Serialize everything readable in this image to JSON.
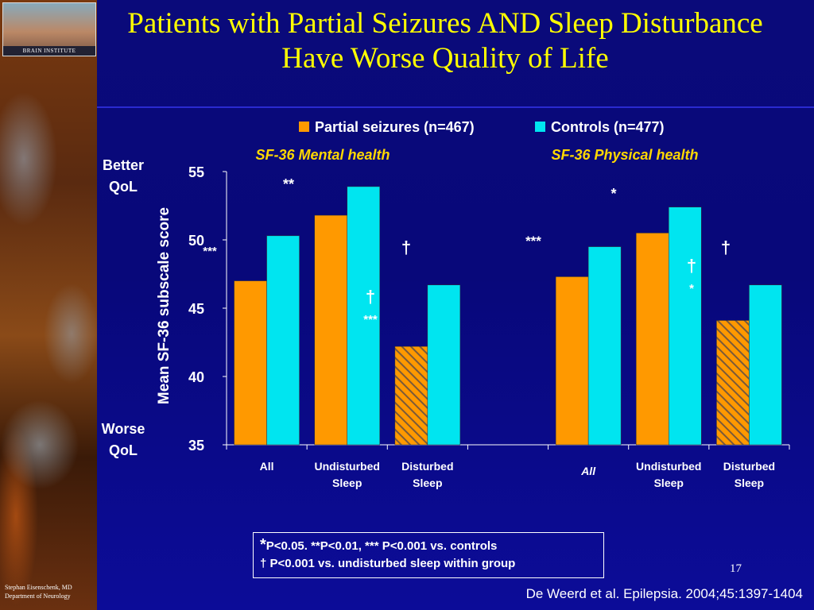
{
  "slide": {
    "title": "Patients with Partial Seizures AND Sleep Disturbance Have Worse Quality of Life",
    "logo_caption": "BRAIN INSTITUTE",
    "credit_line1": "Stephan Eisenschenk, MD",
    "credit_line2": "Department of Neurology",
    "page_number": "17",
    "citation": "De Weerd et al. Epilepsia. 2004;45:1397-1404",
    "footnote_line1_star": "*",
    "footnote_line1": "P<0.05. **P<0.01, *** P<0.001 vs. controls",
    "footnote_line2": "† P<0.001 vs. undisturbed sleep within group"
  },
  "colors": {
    "partial": "#ff9900",
    "controls": "#00e5f0",
    "hatch": "#7a5a3a",
    "background": "#0a0a7a",
    "title": "#ffff00",
    "subtitle": "#ffd800",
    "text": "#ffffff"
  },
  "chart_data": {
    "type": "bar",
    "ylabel": "Mean SF-36 subscale score",
    "ylim": [
      35,
      55
    ],
    "yticks": [
      "35",
      "40",
      "45",
      "50",
      "55"
    ],
    "y_top_label": "Better\nQoL",
    "y_bottom_label": "Worse\nQoL",
    "legend": [
      "Partial seizures (n=467)",
      "Controls (n=477)"
    ],
    "legend_position": "top",
    "panels": [
      {
        "subtitle": "SF-36 Mental health",
        "groups": [
          {
            "label": "All",
            "partial": 47.0,
            "controls": 50.3,
            "partial_hatched": false
          },
          {
            "label": "Undisturbed\nSleep",
            "partial": 51.8,
            "controls": 53.9,
            "partial_hatched": false
          },
          {
            "label": "Disturbed\nSleep",
            "partial": 42.2,
            "controls": 46.7,
            "partial_hatched": true
          }
        ]
      },
      {
        "subtitle": "SF-36 Physical health",
        "groups": [
          {
            "label": "All",
            "partial": 47.3,
            "controls": 49.5,
            "partial_hatched": false
          },
          {
            "label": "Undisturbed\nSleep",
            "partial": 50.5,
            "controls": 52.4,
            "partial_hatched": false
          },
          {
            "label": "Disturbed\nSleep",
            "partial": 44.1,
            "controls": 46.7,
            "partial_hatched": true
          }
        ]
      }
    ],
    "annotations": [
      "***",
      "**",
      "†",
      "†",
      "***",
      "***",
      "*",
      "†",
      "†",
      "*"
    ]
  }
}
